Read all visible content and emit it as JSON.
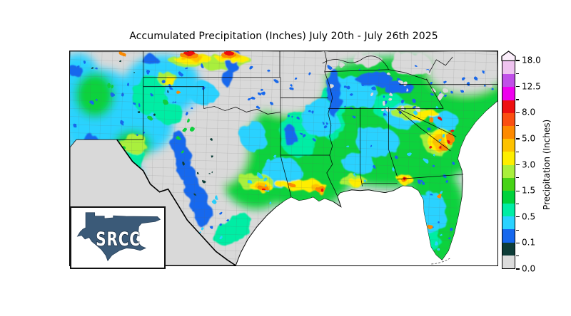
{
  "title": "Accumulated Precipitation (Inches) July 20th - July 26th 2025",
  "colorbar": {
    "axis_label": "Precipitation (Inches)",
    "tick_labels_top_to_bottom": [
      "18.0",
      "12.5",
      "8.0",
      "5.0",
      "3.0",
      "1.5",
      "0.5",
      "0.1",
      "0.0"
    ],
    "segment_colors_bottom_to_top": [
      "#dcdcdc",
      "#0e3d38",
      "#1567ee",
      "#29d2ff",
      "#00eda4",
      "#00d23c",
      "#46d316",
      "#a9ef3c",
      "#feee00",
      "#fec200",
      "#fe8a00",
      "#fb4f11",
      "#ee1111",
      "#ee00ee",
      "#c050e8",
      "#eec3ef"
    ],
    "arrow_color": "#fbeefb"
  },
  "logo": {
    "text": "SRCC"
  },
  "map": {
    "land_color": "#d9d9d9",
    "ocean_color": "#ffffff",
    "border_color": "#000000",
    "logo_fill": "#3b5a78"
  },
  "chart_data": {
    "type": "heatmap",
    "title": "Accumulated Precipitation (Inches) July 20th - July 26th 2025",
    "colorbar_label": "Precipitation (Inches)",
    "units": "Inches",
    "colorbar_tick_values": [
      0.0,
      0.1,
      0.5,
      1.5,
      3.0,
      5.0,
      8.0,
      12.5,
      18.0
    ],
    "colorbar_range": [
      0.0,
      18.0
    ],
    "colorbar_extends_above_max": true,
    "legend_position": "right",
    "segment_colors_low_to_high": [
      "#dcdcdc",
      "#0e3d38",
      "#1567ee",
      "#29d2ff",
      "#00eda4",
      "#00d23c",
      "#46d316",
      "#a9ef3c",
      "#feee00",
      "#fec200",
      "#fe8a00",
      "#fb4f11",
      "#ee1111",
      "#ee00ee",
      "#c050e8",
      "#eec3ef"
    ]
  }
}
